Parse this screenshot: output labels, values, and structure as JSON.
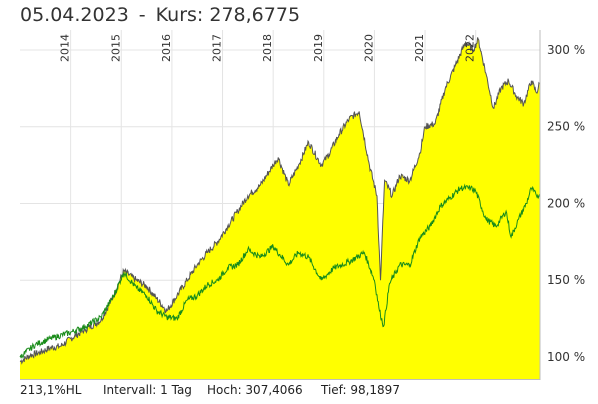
{
  "header": {
    "date": "05.04.2023",
    "separator": "-",
    "price_label": "Kurs:",
    "price_value": "278,6775"
  },
  "footer": {
    "performance": "213,1%HL",
    "interval": "Intervall: 1 Tag",
    "high": "Hoch: 307,4066",
    "low": "Tief: 98,1897"
  },
  "colors": {
    "area_fill": "#ffff00",
    "price_line": "#555555",
    "benchmark_line": "#1a8c1a",
    "grid": "#e4e4e4"
  },
  "chart_data": {
    "type": "area",
    "xlabel": "",
    "ylabel": "",
    "year_ticks": [
      "2014",
      "2015",
      "2016",
      "2017",
      "2018",
      "2019",
      "2020",
      "2021",
      "2022"
    ],
    "year_tick_positions": [
      2014.0,
      2015.0,
      2016.0,
      2017.0,
      2018.0,
      2019.0,
      2020.0,
      2021.0,
      2022.0
    ],
    "y_ticks": [
      100,
      150,
      200,
      250,
      300
    ],
    "y_tick_labels": [
      "100 %",
      "150 %",
      "200 %",
      "250 %",
      "300 %"
    ],
    "xlim": [
      2013.0,
      2023.27
    ],
    "ylim": [
      85,
      313
    ],
    "grid": true,
    "series": [
      {
        "role": "price_area",
        "x": [
          2013.0,
          2013.2,
          2013.4,
          2013.6,
          2013.8,
          2014.0,
          2014.3,
          2014.6,
          2014.85,
          2015.05,
          2015.3,
          2015.5,
          2015.7,
          2015.9,
          2016.1,
          2016.3,
          2016.5,
          2016.7,
          2016.9,
          2017.1,
          2017.3,
          2017.5,
          2017.75,
          2018.0,
          2018.1,
          2018.3,
          2018.5,
          2018.7,
          2018.95,
          2019.1,
          2019.3,
          2019.5,
          2019.7,
          2019.9,
          2020.05,
          2020.12,
          2020.2,
          2020.35,
          2020.5,
          2020.7,
          2020.9,
          2021.0,
          2021.2,
          2021.4,
          2021.6,
          2021.8,
          2021.95,
          2022.05,
          2022.2,
          2022.35,
          2022.5,
          2022.65,
          2022.8,
          2022.95,
          2023.1,
          2023.2,
          2023.26
        ],
        "y": [
          97,
          101,
          103,
          106,
          107,
          112,
          118,
          124,
          140,
          156,
          150,
          146,
          138,
          130,
          140,
          150,
          160,
          168,
          175,
          185,
          195,
          205,
          212,
          225,
          230,
          212,
          225,
          240,
          225,
          232,
          245,
          255,
          260,
          225,
          205,
          150,
          215,
          205,
          218,
          215,
          233,
          250,
          252,
          275,
          290,
          305,
          300,
          307,
          285,
          262,
          275,
          280,
          270,
          265,
          280,
          272,
          278
        ]
      },
      {
        "role": "benchmark_line",
        "x": [
          2013.0,
          2013.3,
          2013.6,
          2014.0,
          2014.3,
          2014.6,
          2014.85,
          2015.05,
          2015.3,
          2015.5,
          2015.7,
          2015.9,
          2016.1,
          2016.3,
          2016.5,
          2016.7,
          2016.9,
          2017.1,
          2017.3,
          2017.5,
          2017.75,
          2018.0,
          2018.3,
          2018.5,
          2018.7,
          2018.95,
          2019.2,
          2019.5,
          2019.8,
          2020.0,
          2020.1,
          2020.18,
          2020.3,
          2020.5,
          2020.7,
          2020.9,
          2021.1,
          2021.3,
          2021.5,
          2021.7,
          2021.9,
          2022.0,
          2022.2,
          2022.4,
          2022.6,
          2022.7,
          2022.85,
          2023.0,
          2023.1,
          2023.2,
          2023.26
        ],
        "y": [
          100,
          108,
          112,
          116,
          120,
          126,
          140,
          155,
          145,
          140,
          130,
          126,
          125,
          137,
          140,
          147,
          150,
          158,
          160,
          170,
          165,
          172,
          160,
          168,
          165,
          150,
          158,
          162,
          168,
          150,
          130,
          120,
          148,
          160,
          160,
          178,
          185,
          198,
          204,
          210,
          210,
          208,
          190,
          185,
          195,
          178,
          190,
          200,
          210,
          205,
          206
        ]
      }
    ]
  }
}
